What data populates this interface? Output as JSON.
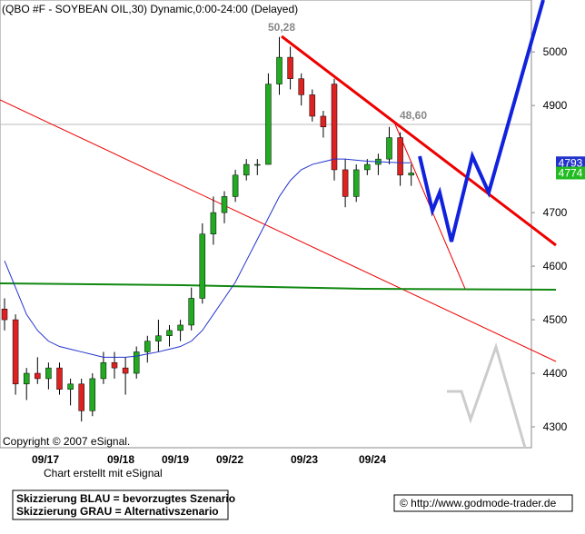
{
  "chart_data": {
    "type": "candlestick",
    "title": "(QBO #F - SOYBEAN OIL,30) Dynamic,0:00-24:00 (Delayed)",
    "ylim": [
      4261,
      5097
    ],
    "yticks": [
      4300,
      4400,
      4500,
      4600,
      4700,
      4900,
      5000
    ],
    "categories": [
      "09/17",
      "09/18",
      "09/19",
      "09/22",
      "09/23",
      "09/24"
    ],
    "open": [
      4520,
      4500,
      4380,
      4400,
      4390,
      4410,
      4370,
      4380,
      4330,
      4390,
      4420,
      4410,
      4400,
      4440,
      4460,
      4470,
      4480,
      4490,
      4540,
      4660,
      4700,
      4730,
      4770,
      4790,
      4790,
      4940,
      4990,
      4950,
      4920,
      4880,
      4940,
      4780,
      4730,
      4780,
      4790,
      4800,
      4840,
      4770
    ],
    "high": [
      4540,
      4510,
      4410,
      4430,
      4420,
      4420,
      4390,
      4390,
      4400,
      4440,
      4440,
      4430,
      4450,
      4470,
      4500,
      4490,
      4500,
      4560,
      4680,
      4730,
      4740,
      4780,
      4800,
      4800,
      4960,
      5028,
      5010,
      4960,
      4930,
      4890,
      4950,
      4800,
      4790,
      4800,
      4810,
      4860,
      4850,
      4790
    ],
    "low": [
      4480,
      4360,
      4350,
      4380,
      4370,
      4360,
      4340,
      4310,
      4320,
      4380,
      4390,
      4360,
      4390,
      4420,
      4440,
      4450,
      4460,
      4480,
      4530,
      4640,
      4680,
      4720,
      4760,
      4770,
      4790,
      4920,
      4930,
      4900,
      4870,
      4840,
      4760,
      4710,
      4720,
      4770,
      4770,
      4790,
      4750,
      4750
    ],
    "close": [
      4500,
      4380,
      4400,
      4390,
      4410,
      4370,
      4380,
      4330,
      4390,
      4420,
      4410,
      4400,
      4440,
      4460,
      4470,
      4480,
      4490,
      4540,
      4660,
      4700,
      4730,
      4770,
      4790,
      4790,
      4940,
      4990,
      4950,
      4920,
      4880,
      4860,
      4780,
      4730,
      4780,
      4790,
      4800,
      4840,
      4770,
      4774
    ],
    "up_color": "#22aa22",
    "down_color": "#dd2222",
    "moving_average": {
      "color": "#2233cc",
      "values": [
        4610,
        4560,
        4510,
        4480,
        4460,
        4450,
        4445,
        4440,
        4435,
        4430,
        4430,
        4430,
        4432,
        4436,
        4440,
        4445,
        4450,
        4460,
        4480,
        4510,
        4540,
        4570,
        4610,
        4650,
        4690,
        4730,
        4760,
        4780,
        4790,
        4795,
        4800,
        4800,
        4798,
        4796,
        4795,
        4794,
        4793,
        4793
      ]
    },
    "price_labels": [
      {
        "value": 4793,
        "label": "4793",
        "color": "#2233cc"
      },
      {
        "value": 4774,
        "label": "4774",
        "color": "#22bb22"
      }
    ],
    "annotations": [
      "50,28",
      "48,60"
    ],
    "copyright": "Copyright © 2007 eSignal.",
    "footer_note": "Chart erstellt mit eSignal",
    "legend_lines": [
      "Skizzierung BLAU = bevorzugtes Szenario",
      "Skizzierung GRAU = Alternativszenario"
    ],
    "source": "© http://www.godmode-trader.de"
  }
}
